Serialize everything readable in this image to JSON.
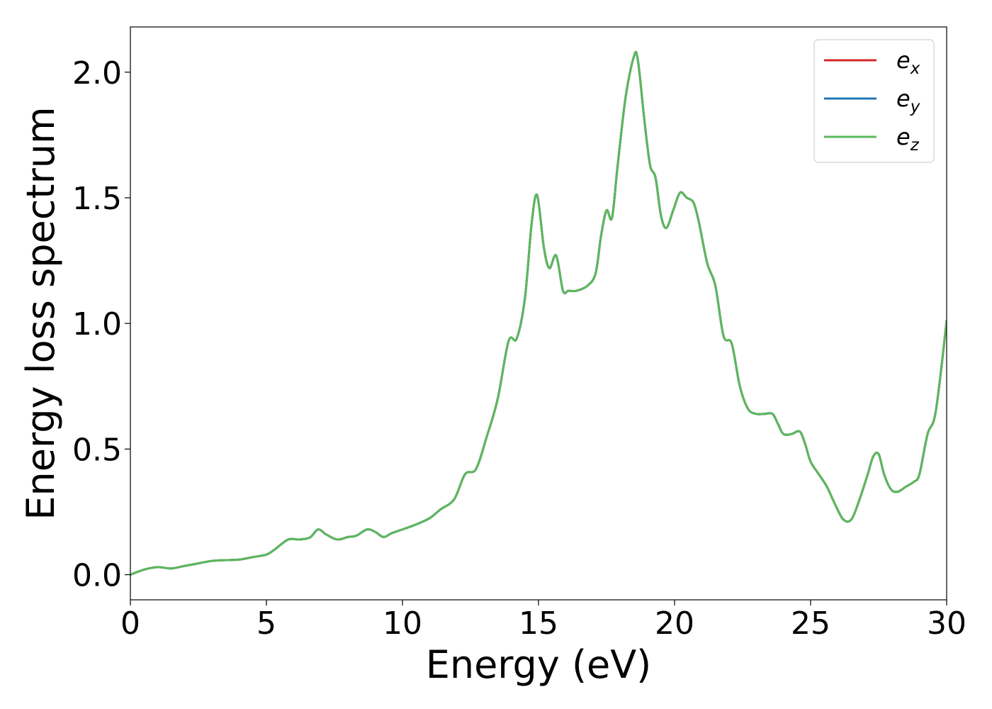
{
  "chart_data": {
    "type": "line",
    "xlabel": "Energy (eV)",
    "ylabel": "Energy loss spectrum",
    "xlim": [
      0,
      30
    ],
    "ylim": [
      -0.1,
      2.18
    ],
    "xticks": [
      "0",
      "5",
      "10",
      "15",
      "20",
      "25",
      "30"
    ],
    "yticks": [
      "0.0",
      "0.5",
      "1.0",
      "1.5",
      "2.0"
    ],
    "grid": false,
    "legend_position": "top-right",
    "series": [
      {
        "name": "e_x",
        "label_base": "e",
        "label_sub": "x",
        "color": "#d62728"
      },
      {
        "name": "e_y",
        "label_base": "e",
        "label_sub": "y",
        "color": "#1f77b4"
      },
      {
        "name": "e_z",
        "label_base": "e",
        "label_sub": "z",
        "color": "#5cb85c"
      }
    ],
    "x": [
      0,
      0.5,
      1.0,
      1.5,
      2.0,
      2.5,
      3.0,
      3.5,
      4.0,
      4.5,
      5.0,
      5.3,
      5.8,
      6.2,
      6.6,
      6.9,
      7.2,
      7.6,
      8.0,
      8.3,
      8.7,
      9.0,
      9.3,
      9.6,
      10.0,
      10.5,
      11.0,
      11.4,
      11.9,
      12.3,
      12.7,
      13.1,
      13.5,
      13.9,
      14.2,
      14.5,
      14.75,
      14.95,
      15.2,
      15.4,
      15.65,
      15.9,
      16.1,
      16.4,
      16.8,
      17.1,
      17.3,
      17.5,
      17.7,
      17.9,
      18.2,
      18.5,
      18.65,
      18.9,
      19.1,
      19.3,
      19.5,
      19.7,
      19.95,
      20.2,
      20.45,
      20.7,
      20.9,
      21.2,
      21.5,
      21.8,
      22.1,
      22.4,
      22.7,
      23.0,
      23.3,
      23.6,
      23.8,
      24.0,
      24.3,
      24.6,
      24.8,
      25.0,
      25.3,
      25.6,
      25.9,
      26.2,
      26.5,
      26.8,
      27.1,
      27.3,
      27.5,
      27.7,
      27.95,
      28.2,
      28.5,
      28.8,
      29.0,
      29.3,
      29.6,
      30.0
    ],
    "values": [
      0.0,
      0.02,
      0.03,
      0.025,
      0.035,
      0.045,
      0.055,
      0.058,
      0.06,
      0.07,
      0.08,
      0.1,
      0.14,
      0.14,
      0.148,
      0.18,
      0.16,
      0.14,
      0.15,
      0.155,
      0.18,
      0.17,
      0.15,
      0.165,
      0.18,
      0.2,
      0.225,
      0.26,
      0.3,
      0.4,
      0.42,
      0.55,
      0.7,
      0.93,
      0.94,
      1.1,
      1.4,
      1.51,
      1.3,
      1.22,
      1.27,
      1.13,
      1.13,
      1.13,
      1.15,
      1.2,
      1.35,
      1.45,
      1.42,
      1.62,
      1.9,
      2.06,
      2.05,
      1.8,
      1.63,
      1.58,
      1.43,
      1.38,
      1.45,
      1.52,
      1.5,
      1.48,
      1.4,
      1.24,
      1.15,
      0.95,
      0.92,
      0.75,
      0.66,
      0.64,
      0.64,
      0.64,
      0.6,
      0.56,
      0.56,
      0.57,
      0.52,
      0.45,
      0.4,
      0.35,
      0.28,
      0.22,
      0.22,
      0.3,
      0.4,
      0.47,
      0.48,
      0.4,
      0.34,
      0.33,
      0.35,
      0.37,
      0.4,
      0.56,
      0.65,
      1.01
    ]
  }
}
